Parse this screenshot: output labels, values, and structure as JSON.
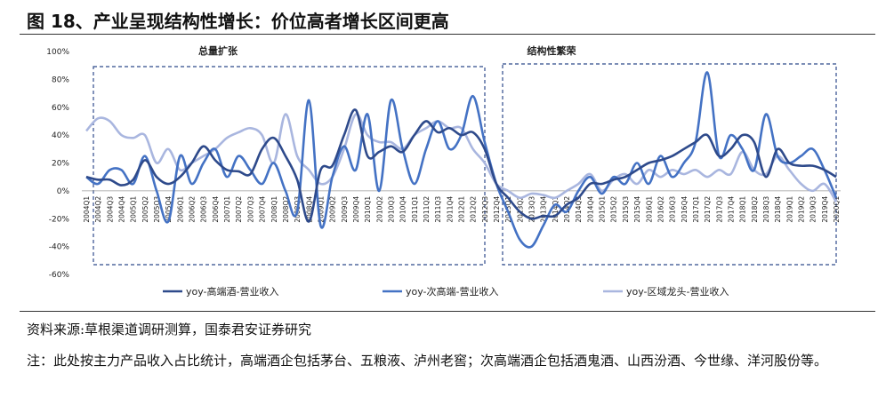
{
  "chart_data": {
    "type": "line",
    "title": "图 18、产业呈现结构性增长：价位高者增长区间更高",
    "annotations": [
      "总量扩张",
      "结构性繁荣"
    ],
    "categories": [
      "2004Q1",
      "2004Q2",
      "2004Q3",
      "2004Q4",
      "2005Q1",
      "2005Q2",
      "2005Q3",
      "2005Q4",
      "2006Q1",
      "2006Q2",
      "2006Q3",
      "2006Q4",
      "2007Q1",
      "2007Q2",
      "2007Q3",
      "2007Q4",
      "2008Q1",
      "2008Q2",
      "2008Q3",
      "2008Q4",
      "2009Q1",
      "2009Q2",
      "2009Q3",
      "2009Q4",
      "2010Q1",
      "2010Q2",
      "2010Q3",
      "2010Q4",
      "2011Q1",
      "2011Q2",
      "2011Q3",
      "2011Q4",
      "2012Q1",
      "2012Q2",
      "2012Q3",
      "2012Q4",
      "2013Q1",
      "2013Q2",
      "2013Q3",
      "2013Q4",
      "2014Q1",
      "2014Q2",
      "2014Q3",
      "2014Q4",
      "2015Q1",
      "2015Q2",
      "2015Q3",
      "2015Q4",
      "2016Q1",
      "2016Q2",
      "2016Q3",
      "2016Q4",
      "2017Q1",
      "2017Q2",
      "2017Q3",
      "2017Q4",
      "2018Q1",
      "2018Q2",
      "2018Q3",
      "2018Q4",
      "2019Q1",
      "2019Q2",
      "2019Q3",
      "2019Q4",
      "2020Q1"
    ],
    "series": [
      {
        "name": "yoy-高端酒-营业收入",
        "color": "#2E4A8B",
        "values": [
          10,
          8,
          8,
          4,
          8,
          22,
          10,
          5,
          10,
          20,
          32,
          22,
          15,
          14,
          12,
          30,
          38,
          25,
          8,
          -22,
          15,
          18,
          40,
          58,
          25,
          28,
          32,
          28,
          40,
          50,
          42,
          45,
          40,
          42,
          30,
          5,
          -5,
          -15,
          -20,
          -18,
          -18,
          -10,
          -5,
          5,
          5,
          8,
          10,
          15,
          20,
          22,
          25,
          30,
          35,
          40,
          25,
          30,
          40,
          35,
          10,
          30,
          20,
          18,
          18,
          15,
          10
        ]
      },
      {
        "name": "yoy-次高端-营业收入",
        "color": "#4472C4",
        "values": [
          10,
          5,
          15,
          15,
          5,
          25,
          0,
          -22,
          25,
          5,
          20,
          30,
          10,
          25,
          15,
          5,
          20,
          0,
          -15,
          65,
          -25,
          10,
          32,
          15,
          55,
          0,
          65,
          30,
          5,
          30,
          50,
          30,
          40,
          68,
          35,
          5,
          -15,
          -35,
          -40,
          -25,
          -10,
          -15,
          0,
          10,
          -2,
          10,
          5,
          20,
          5,
          25,
          10,
          20,
          35,
          85,
          25,
          40,
          30,
          15,
          55,
          25,
          20,
          25,
          30,
          15,
          -5
        ]
      },
      {
        "name": "yoy-区域龙头-营业收入",
        "color": "#A9B6DF",
        "values": [
          43,
          52,
          50,
          40,
          38,
          40,
          20,
          30,
          15,
          20,
          25,
          30,
          38,
          42,
          45,
          40,
          20,
          55,
          25,
          15,
          5,
          10,
          30,
          55,
          40,
          35,
          35,
          30,
          40,
          45,
          50,
          45,
          45,
          30,
          20,
          5,
          0,
          -5,
          -2,
          -3,
          -5,
          0,
          5,
          12,
          0,
          8,
          12,
          5,
          15,
          10,
          15,
          12,
          15,
          10,
          15,
          12,
          28,
          15,
          12,
          25,
          15,
          5,
          0,
          5,
          -8
        ]
      }
    ],
    "ylim": [
      -60,
      100
    ],
    "yticks": [
      {
        "value": -60,
        "label": "-60%"
      },
      {
        "value": -40,
        "label": "-40%"
      },
      {
        "value": -20,
        "label": "-20%"
      },
      {
        "value": 0,
        "label": "0%"
      },
      {
        "value": 20,
        "label": "20%"
      },
      {
        "value": 40,
        "label": "40%"
      },
      {
        "value": 60,
        "label": "60%"
      },
      {
        "value": 80,
        "label": "80%"
      },
      {
        "value": 100,
        "label": "100%"
      }
    ],
    "legend": "bottom"
  },
  "source": "资料来源:草根渠道调研测算，国泰君安证券研究",
  "note": "注：此处按主力产品收入占比统计，高端酒企包括茅台、五粮液、泸州老窖；次高端酒企包括酒鬼酒、山西汾酒、今世缘、洋河股份等。"
}
